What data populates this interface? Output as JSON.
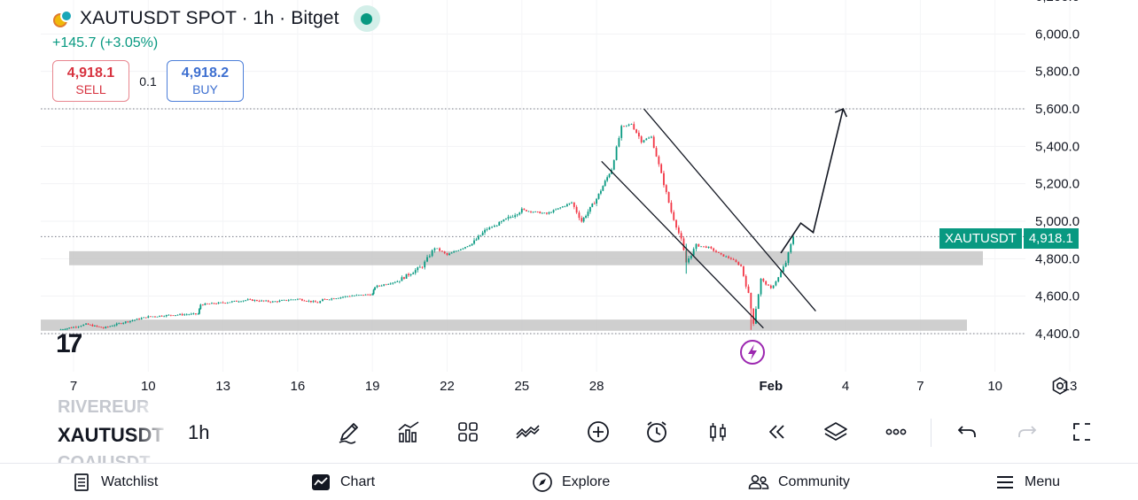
{
  "header": {
    "title": "XAUTUSDT SPOT · 1h · Bitget",
    "change": "+145.7 (+3.05%)"
  },
  "trade": {
    "sell_price": "4,918.1",
    "sell_label": "SELL",
    "quantity": "0.1",
    "buy_price": "4,918.2",
    "buy_label": "BUY"
  },
  "price_axis": {
    "ticks": [
      "6,000.0",
      "5,800.0",
      "5,600.0",
      "5,400.0",
      "5,200.0",
      "5,000.0",
      "4,800.0",
      "4,600.0",
      "4,400.0"
    ],
    "current_symbol": "XAUTUSDT",
    "current_price": "4,918.1"
  },
  "time_axis": {
    "ticks": [
      "7",
      "10",
      "13",
      "16",
      "19",
      "22",
      "25",
      "28",
      "Feb",
      "4",
      "7",
      "10",
      "13"
    ]
  },
  "chart_data": {
    "type": "candlestick",
    "symbol": "XAUTUSDT",
    "interval": "1h",
    "ylim": [
      4320,
      6250
    ],
    "x": [
      "7",
      "10",
      "13",
      "16",
      "19",
      "22",
      "25",
      "28",
      "Feb",
      "4",
      "7",
      "10",
      "13"
    ],
    "close_path": [
      [
        6.4,
        4420
      ],
      [
        7,
        4435
      ],
      [
        7.5,
        4450
      ],
      [
        8.2,
        4430
      ],
      [
        9,
        4460
      ],
      [
        10,
        4490
      ],
      [
        11,
        4500
      ],
      [
        12,
        4505
      ],
      [
        12.1,
        4555
      ],
      [
        13,
        4565
      ],
      [
        14,
        4580
      ],
      [
        15,
        4570
      ],
      [
        16,
        4585
      ],
      [
        16.8,
        4565
      ],
      [
        17,
        4580
      ],
      [
        18,
        4600
      ],
      [
        19,
        4610
      ],
      [
        19.1,
        4650
      ],
      [
        20,
        4680
      ],
      [
        21,
        4760
      ],
      [
        21.5,
        4860
      ],
      [
        22,
        4820
      ],
      [
        23,
        4880
      ],
      [
        23.6,
        4960
      ],
      [
        24,
        4980
      ],
      [
        25,
        5060
      ],
      [
        26,
        5040
      ],
      [
        27,
        5100
      ],
      [
        27.4,
        5000
      ],
      [
        28,
        5120
      ],
      [
        28.6,
        5280
      ],
      [
        29,
        5500
      ],
      [
        29.4,
        5520
      ],
      [
        29.8,
        5430
      ],
      [
        30.2,
        5450
      ],
      [
        30.6,
        5250
      ],
      [
        31,
        5050
      ],
      [
        31.4,
        4900
      ],
      [
        31.6,
        4780
      ],
      [
        32,
        4870
      ],
      [
        32.5,
        4860
      ],
      [
        33,
        4820
      ],
      [
        33.4,
        4800
      ],
      [
        33.8,
        4760
      ],
      [
        34.1,
        4610
      ],
      [
        34.3,
        4460
      ],
      [
        34.6,
        4690
      ],
      [
        35,
        4640
      ],
      [
        35.3,
        4700
      ],
      [
        35.6,
        4780
      ],
      [
        35.9,
        4920
      ]
    ],
    "support_zones": [
      {
        "low": 4765,
        "high": 4840
      },
      {
        "low": 4415,
        "high": 4475
      }
    ],
    "dotted_levels": [
      5600,
      4918.1,
      4400
    ],
    "channel": {
      "upper": [
        [
          29.9,
          5600
        ],
        [
          36.8,
          4520
        ]
      ],
      "lower": [
        [
          28.2,
          5320
        ],
        [
          34.7,
          4430
        ]
      ]
    },
    "projection": [
      [
        35.4,
        4830
      ],
      [
        36.2,
        4990
      ],
      [
        36.7,
        4940
      ],
      [
        37.9,
        5600
      ]
    ],
    "colors": {
      "up": "#089981",
      "down": "#f23645",
      "zone": "#c7c7c7"
    }
  },
  "toolbar": {
    "symbol": "XAUTUSDT",
    "symbol_prev": "RIVEREUR",
    "symbol_next": "COAIUSDT",
    "interval": "1h",
    "icons": [
      "draw-pencil-icon",
      "indicators-icon",
      "apps-grid-icon",
      "compare-icon",
      "add-icon",
      "alert-clock-icon",
      "candle-type-icon",
      "replay-icon",
      "layers-icon",
      "more-icon",
      "undo-icon",
      "redo-icon",
      "fullscreen-icon"
    ]
  },
  "nav": {
    "watchlist": "Watchlist",
    "chart": "Chart",
    "explore": "Explore",
    "community": "Community",
    "menu": "Menu"
  }
}
